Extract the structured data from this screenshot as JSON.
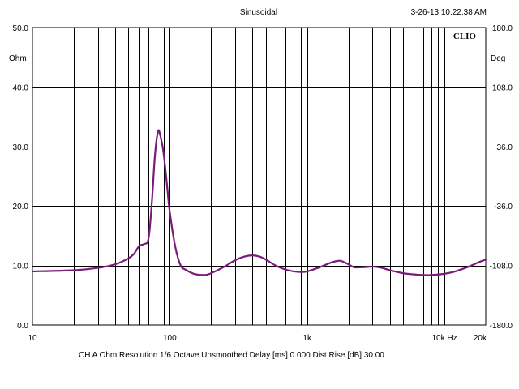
{
  "chart_data": {
    "type": "line",
    "title": "Sinusoidal",
    "timestamp": "3-26-13 10.22.38 AM",
    "logo": "CLIO",
    "x_scale": "log",
    "xlim": [
      10,
      20000
    ],
    "x_tick_labels": [
      {
        "value": 10,
        "label": "10"
      },
      {
        "value": 100,
        "label": "100"
      },
      {
        "value": 1000,
        "label": "1k"
      },
      {
        "value": 10000,
        "label": "10k Hz"
      },
      {
        "value": 20000,
        "label": "20k"
      }
    ],
    "left_axis": {
      "unit": "Ohm",
      "ylim": [
        0,
        50
      ],
      "tick_labels": [
        {
          "value": 50,
          "label": "50.0"
        },
        {
          "value": 40,
          "label": "40.0"
        },
        {
          "value": 30,
          "label": "30.0"
        },
        {
          "value": 20,
          "label": "20.0"
        },
        {
          "value": 10,
          "label": "10.0"
        },
        {
          "value": 0,
          "label": "0.0"
        }
      ]
    },
    "right_axis": {
      "unit": "Deg",
      "ylim": [
        -180,
        180
      ],
      "tick_labels": [
        {
          "value": 180,
          "label": "180.0"
        },
        {
          "value": 108,
          "label": "108.0"
        },
        {
          "value": 36,
          "label": "36.0"
        },
        {
          "value": -36,
          "label": "-36.0"
        },
        {
          "value": -108,
          "label": "-108.0"
        },
        {
          "value": -180,
          "label": "-180.0"
        }
      ]
    },
    "grid": true,
    "footer": "CH A   Ohm   Resolution 1/6 Octave   Unsmoothed   Delay [ms] 0.000   Dist Rise [dB] 30.00",
    "series": [
      {
        "color": "#7a1a7a",
        "x": [
          10,
          20,
          30,
          40,
          50,
          55,
          60,
          65,
          70,
          74,
          78,
          82,
          85,
          90,
          95,
          100,
          110,
          120,
          130,
          150,
          180,
          200,
          250,
          300,
          350,
          400,
          450,
          500,
          600,
          700,
          800,
          900,
          1000,
          1200,
          1500,
          1700,
          1800,
          2000,
          2200,
          2500,
          3000,
          3500,
          4000,
          5000,
          6000,
          7000,
          8000,
          10000,
          12000,
          15000,
          18000,
          20000
        ],
        "y": [
          9.0,
          9.2,
          9.6,
          10.2,
          11.2,
          12.0,
          13.3,
          13.6,
          14.5,
          20.5,
          28.5,
          32.5,
          32.0,
          29.0,
          24.0,
          19.0,
          13.0,
          10.0,
          9.3,
          8.6,
          8.4,
          8.7,
          9.8,
          10.9,
          11.5,
          11.7,
          11.5,
          11.0,
          9.9,
          9.3,
          9.0,
          8.9,
          9.0,
          9.6,
          10.5,
          10.8,
          10.7,
          10.2,
          9.7,
          9.7,
          9.8,
          9.6,
          9.2,
          8.7,
          8.5,
          8.4,
          8.4,
          8.6,
          9.0,
          9.8,
          10.6,
          11.0
        ]
      }
    ]
  }
}
